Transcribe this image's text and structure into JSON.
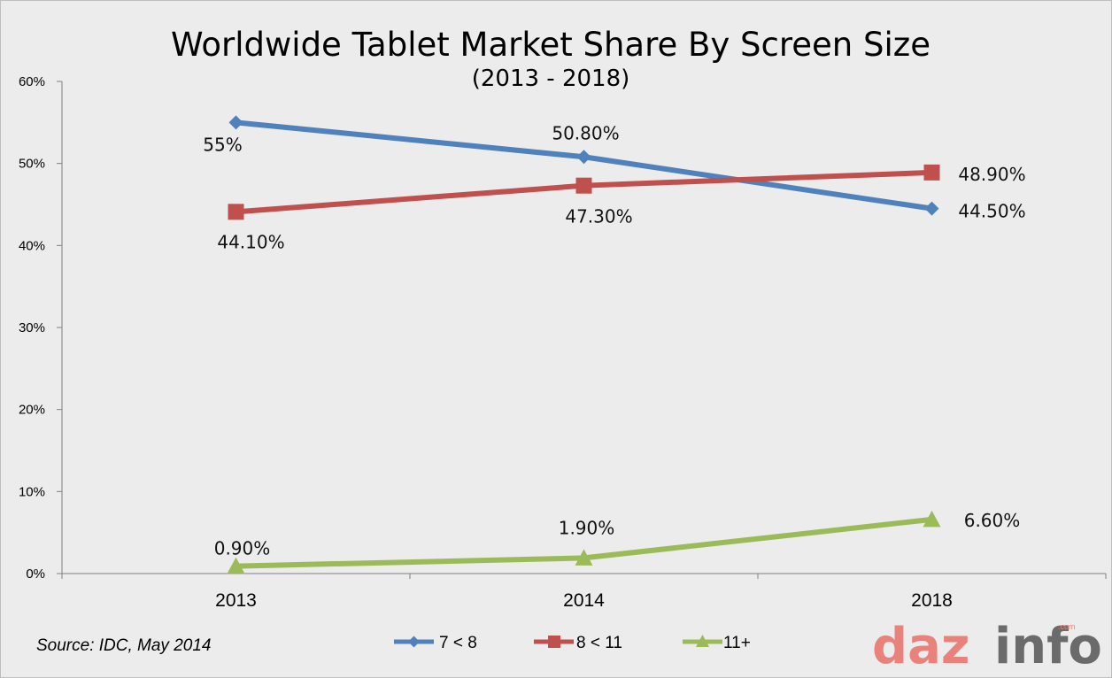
{
  "chart_data": {
    "type": "line",
    "title": "Worldwide Tablet Market Share By Screen Size",
    "subtitle": "(2013 - 2018)",
    "categories": [
      "2013",
      "2014",
      "2018"
    ],
    "ylim": [
      0,
      60
    ],
    "yticks": [
      "0%",
      "10%",
      "20%",
      "30%",
      "40%",
      "50%",
      "60%"
    ],
    "ytick_values": [
      0,
      10,
      20,
      30,
      40,
      50,
      60
    ],
    "grid": false,
    "legend_position": "bottom",
    "series": [
      {
        "name": "7 < 8",
        "values": [
          55,
          50.8,
          44.5
        ],
        "labels": [
          "55%",
          "50.80%",
          "44.50%"
        ],
        "color": "#4f81bd",
        "marker": "diamond"
      },
      {
        "name": "8 < 11",
        "values": [
          44.1,
          47.3,
          48.9
        ],
        "labels": [
          "44.10%",
          "47.30%",
          "48.90%"
        ],
        "color": "#c0504d",
        "marker": "square"
      },
      {
        "name": "11+",
        "values": [
          0.9,
          1.9,
          6.6
        ],
        "labels": [
          "0.90%",
          "1.90%",
          "6.60%"
        ],
        "color": "#9bbb59",
        "marker": "triangle"
      }
    ]
  },
  "source": "Source: IDC, May 2014",
  "logo": {
    "text_main": "daz",
    "text_tail": "info",
    "text_com": ".com",
    "color_main": "#e8827a",
    "color_tail": "#6b6b6b"
  }
}
